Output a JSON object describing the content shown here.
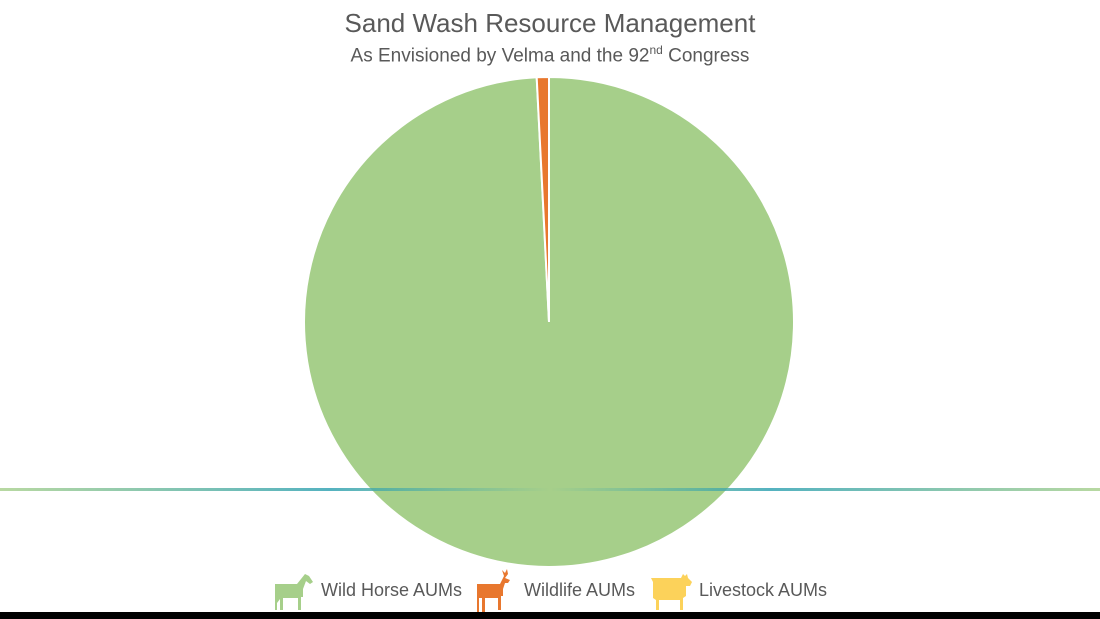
{
  "chart_data": {
    "type": "pie",
    "title": "Sand Wash Resource Management",
    "subtitle_main": "As Envisioned by Velma and the 92",
    "subtitle_sup": "nd",
    "subtitle_end": " Congress",
    "categories": [
      "Wild Horse AUMs",
      "Wildlife AUMs",
      "Livestock AUMs"
    ],
    "values": [
      99.2,
      0.8,
      0
    ],
    "colors": [
      "#a6cf8a",
      "#e8772e",
      "#fcd25a"
    ],
    "legend_icons": [
      "horse-icon",
      "deer-icon",
      "cow-icon"
    ],
    "legend_position": "bottom"
  }
}
